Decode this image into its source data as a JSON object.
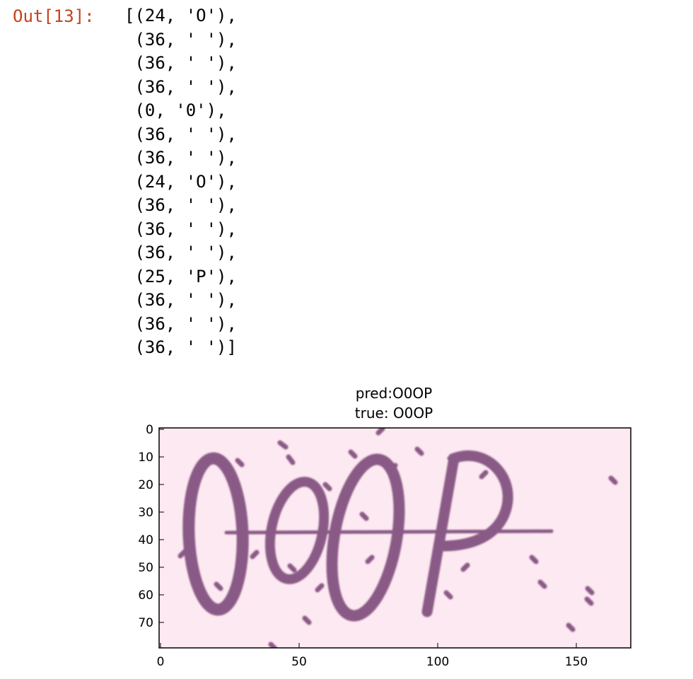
{
  "cell": {
    "prompt": "Out[13]:",
    "output_lines": [
      "[(24, 'O'),",
      " (36, ' '),",
      " (36, ' '),",
      " (36, ' '),",
      " (0, '0'),",
      " (36, ' '),",
      " (36, ' '),",
      " (24, 'O'),",
      " (36, ' '),",
      " (36, ' '),",
      " (36, ' '),",
      " (25, 'P'),",
      " (36, ' '),",
      " (36, ' '),",
      " (36, ' ')]"
    ]
  },
  "figure": {
    "title_line1": "pred:O0OP",
    "title_line2": "true: O0OP",
    "captcha_text": "O0OP",
    "background_color": "#fde9f2",
    "ink_color": "#8a5a86",
    "x_ticks": [
      "0",
      "50",
      "100",
      "150"
    ],
    "y_ticks": [
      "0",
      "10",
      "20",
      "30",
      "40",
      "50",
      "60",
      "70"
    ]
  }
}
